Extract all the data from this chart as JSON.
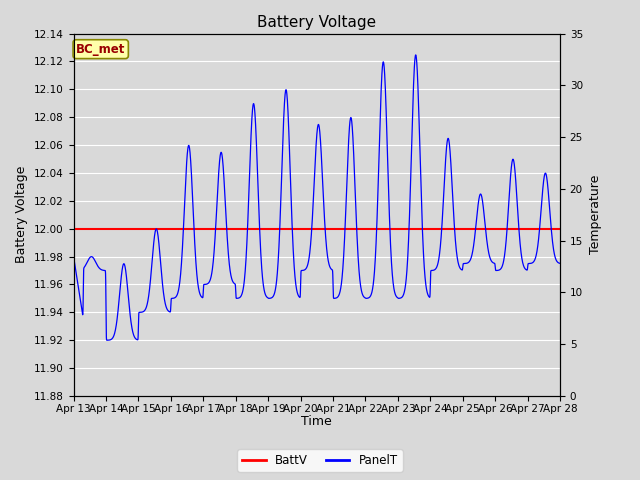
{
  "title": "Battery Voltage",
  "xlabel": "Time",
  "ylabel_left": "Battery Voltage",
  "ylabel_right": "Temperature",
  "ylim_left": [
    11.88,
    12.14
  ],
  "ylim_right": [
    0,
    35
  ],
  "xlim": [
    0,
    15
  ],
  "x_tick_labels": [
    "Apr 13",
    "Apr 14",
    "Apr 15",
    "Apr 16",
    "Apr 17",
    "Apr 18",
    "Apr 19",
    "Apr 20",
    "Apr 21",
    "Apr 22",
    "Apr 23",
    "Apr 24",
    "Apr 25",
    "Apr 26",
    "Apr 27",
    "Apr 28"
  ],
  "batt_v": 12.0,
  "batt_color": "#ff0000",
  "panel_color": "#0000ff",
  "bg_color": "#d9d9d9",
  "plot_bg_color": "#d9d9d9",
  "grid_color": "#ffffff",
  "legend_battv": "BattV",
  "legend_panelt": "PanelT",
  "bc_met_text": "BC_met",
  "bc_met_bg": "#ffffaa",
  "bc_met_fg": "#990000",
  "title_fontsize": 11,
  "axis_label_fontsize": 9,
  "tick_fontsize": 7.5
}
